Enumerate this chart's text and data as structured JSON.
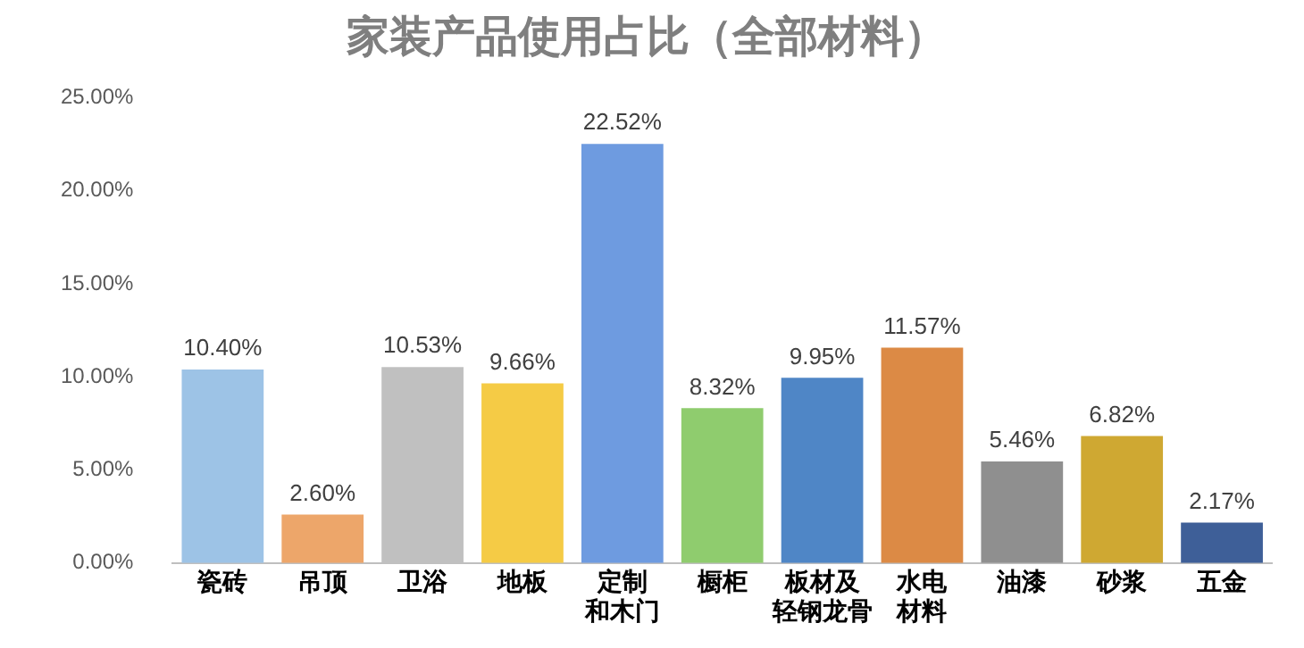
{
  "chart_data": {
    "type": "bar",
    "title": "家装产品使用占比（全部材料）",
    "categories": [
      "瓷砖",
      "吊顶",
      "卫浴",
      "地板",
      "定制和木门",
      "橱柜",
      "板材及轻钢龙骨",
      "水电材料",
      "油漆",
      "砂浆",
      "五金"
    ],
    "values": [
      10.4,
      2.6,
      10.53,
      9.66,
      22.52,
      8.32,
      9.95,
      11.57,
      5.46,
      6.82,
      2.17
    ],
    "value_labels": [
      "10.40%",
      "2.60%",
      "10.53%",
      "9.66%",
      "22.52%",
      "8.32%",
      "9.95%",
      "11.57%",
      "5.46%",
      "6.82%",
      "2.17%"
    ],
    "colors": [
      "#9dc3e6",
      "#eda66a",
      "#c0c0c0",
      "#f5cb45",
      "#6e9be0",
      "#8fcc6e",
      "#4f86c6",
      "#dc8a45",
      "#8f8f8f",
      "#cfa832",
      "#3e5f98"
    ],
    "ylim": [
      0,
      25
    ],
    "yticks": [
      {
        "value": 0,
        "label": "0.00%"
      },
      {
        "value": 5,
        "label": "5.00%"
      },
      {
        "value": 10,
        "label": "10.00%"
      },
      {
        "value": 15,
        "label": "15.00%"
      },
      {
        "value": 20,
        "label": "20.00%"
      },
      {
        "value": 25,
        "label": "25.00%"
      }
    ],
    "grid": false
  }
}
